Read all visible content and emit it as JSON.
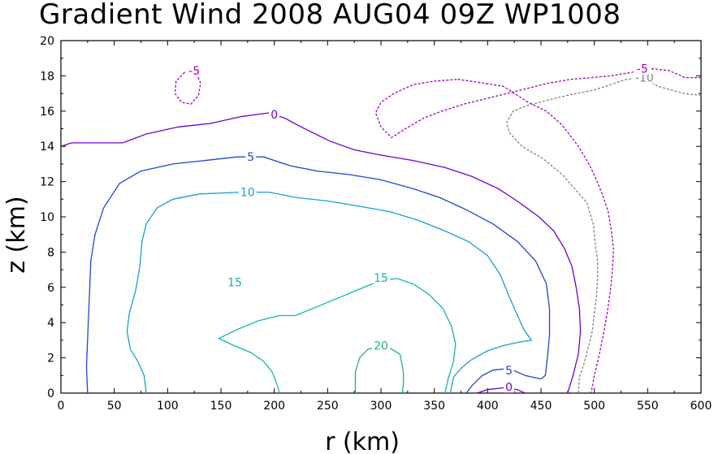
{
  "chart_data": {
    "type": "line",
    "title": "Gradient Wind 2008 AUG04 09Z   WP1008",
    "xlabel": "r (km)",
    "ylabel": "z (km)",
    "xlim": [
      0,
      600
    ],
    "ylim": [
      0,
      20
    ],
    "x_ticks": [
      0,
      50,
      100,
      150,
      200,
      250,
      300,
      350,
      400,
      450,
      500,
      550,
      600
    ],
    "y_ticks": [
      0,
      2,
      4,
      6,
      8,
      10,
      12,
      14,
      16,
      18,
      20
    ],
    "grid": false,
    "series": [
      {
        "name": "-10",
        "label": "-10",
        "color": "#808080",
        "dashed": true,
        "segments": [
          [
            [
              600,
              16.9
            ],
            [
              584,
              17.0
            ],
            [
              560,
              17.4
            ],
            [
              545,
              17.9
            ],
            [
              530,
              17.8
            ],
            [
              515,
              17.5
            ],
            [
              500,
              17.2
            ],
            [
              475,
              16.9
            ],
            [
              455,
              16.6
            ],
            [
              436,
              16.3
            ],
            [
              424,
              16.0
            ],
            [
              418,
              15.4
            ],
            [
              420,
              14.8
            ],
            [
              432,
              14.0
            ],
            [
              452,
              13.3
            ],
            [
              470,
              12.4
            ],
            [
              483,
              11.5
            ],
            [
              493,
              10.8
            ],
            [
              499,
              9.6
            ],
            [
              501,
              8.4
            ],
            [
              503,
              7.5
            ],
            [
              503,
              6.5
            ],
            [
              502,
              5.5
            ],
            [
              500,
              4.5
            ],
            [
              498,
              3.5
            ],
            [
              494,
              2.5
            ],
            [
              490,
              1.6
            ],
            [
              486,
              0.9
            ],
            [
              485,
              0
            ]
          ]
        ],
        "labels": [
          {
            "text": "-10",
            "x": 547,
            "y": 17.9
          }
        ]
      },
      {
        "name": "-5",
        "label": "-5",
        "color": "#a000c8",
        "dashed": true,
        "segments": [
          [
            [
              600,
              17.9
            ],
            [
              585,
              17.9
            ],
            [
              570,
              18.3
            ],
            [
              555,
              18.4
            ],
            [
              535,
              18.2
            ],
            [
              515,
              18.0
            ],
            [
              497,
              17.9
            ],
            [
              478,
              17.8
            ],
            [
              458,
              17.6
            ],
            [
              438,
              17.3
            ],
            [
              418,
              17.0
            ],
            [
              398,
              16.7
            ],
            [
              378,
              16.4
            ],
            [
              357,
              16.0
            ],
            [
              340,
              15.6
            ],
            [
              323,
              15.0
            ],
            [
              310,
              14.5
            ],
            [
              300,
              15.1
            ],
            [
              295,
              15.9
            ],
            [
              300,
              16.5
            ],
            [
              312,
              17.0
            ],
            [
              330,
              17.5
            ],
            [
              350,
              17.7
            ],
            [
              372,
              17.8
            ]
          ],
          [
            [
              372,
              17.8
            ],
            [
              395,
              17.6
            ],
            [
              415,
              17.4
            ],
            [
              438,
              16.5
            ],
            [
              455,
              16.0
            ],
            [
              470,
              15.2
            ],
            [
              485,
              14.0
            ],
            [
              495,
              13.0
            ],
            [
              502,
              12.1
            ],
            [
              508,
              11.2
            ],
            [
              513,
              10.3
            ],
            [
              516,
              9.2
            ],
            [
              518,
              8.2
            ],
            [
              517,
              7.0
            ],
            [
              515,
              5.8
            ],
            [
              512,
              4.5
            ],
            [
              508,
              3.2
            ],
            [
              504,
              2.0
            ],
            [
              500,
              1.0
            ],
            [
              497,
              0
            ]
          ]
        ],
        "labels": [
          {
            "text": "-5",
            "x": 545,
            "y": 18.4
          }
        ]
      },
      {
        "name": "-5 (cell)",
        "label": "-5",
        "color": "#a000c8",
        "dashed": true,
        "segments": [
          [
            [
              116,
              18.2
            ],
            [
              108,
              17.7
            ],
            [
              107,
              17.0
            ],
            [
              113,
              16.5
            ],
            [
              122,
              16.4
            ],
            [
              129,
              16.9
            ],
            [
              131,
              17.6
            ],
            [
              127,
              18.1
            ],
            [
              121,
              18.3
            ],
            [
              116,
              18.2
            ]
          ]
        ],
        "labels": [
          {
            "text": "-5",
            "x": 125,
            "y": 18.3
          }
        ]
      },
      {
        "name": "0",
        "label": "0",
        "color": "#6e00d2",
        "dashed": false,
        "segments": [
          [
            [
              0,
              14.0
            ],
            [
              10,
              14.2
            ],
            [
              30,
              14.2
            ],
            [
              58,
              14.2
            ],
            [
              80,
              14.7
            ],
            [
              110,
              15.1
            ],
            [
              140,
              15.3
            ],
            [
              170,
              15.7
            ],
            [
              195,
              15.9
            ],
            [
              210,
              15.6
            ],
            [
              222,
              15.2
            ],
            [
              232,
              14.9
            ],
            [
              252,
              14.3
            ],
            [
              275,
              13.8
            ],
            [
              300,
              13.5
            ],
            [
              330,
              13.2
            ],
            [
              360,
              12.8
            ],
            [
              385,
              12.3
            ],
            [
              410,
              11.6
            ],
            [
              430,
              10.8
            ],
            [
              448,
              10.0
            ],
            [
              462,
              9.2
            ],
            [
              472,
              8.2
            ],
            [
              479,
              7.2
            ],
            [
              483,
              6.0
            ],
            [
              486,
              4.8
            ],
            [
              487,
              3.5
            ],
            [
              485,
              2.2
            ],
            [
              480,
              1.0
            ],
            [
              475,
              0
            ]
          ],
          [
            [
              390,
              0
            ],
            [
              400,
              0.2
            ],
            [
              415,
              0.3
            ],
            [
              428,
              0.2
            ],
            [
              435,
              0
            ]
          ]
        ],
        "labels": [
          {
            "text": "0",
            "x": 200,
            "y": 15.8
          },
          {
            "text": "0",
            "x": 420,
            "y": 0.35
          }
        ]
      },
      {
        "name": "5",
        "label": "5",
        "color": "#1e46d2",
        "dashed": false,
        "segments": [
          [
            [
              25,
              0
            ],
            [
              24,
              1.5
            ],
            [
              25,
              3.0
            ],
            [
              26,
              4.5
            ],
            [
              27,
              6.0
            ],
            [
              28,
              7.5
            ],
            [
              32,
              9.0
            ],
            [
              40,
              10.5
            ],
            [
              55,
              11.9
            ],
            [
              75,
              12.6
            ],
            [
              105,
              13.0
            ],
            [
              135,
              13.2
            ],
            [
              165,
              13.4
            ],
            [
              190,
              13.4
            ],
            [
              215,
              12.9
            ],
            [
              240,
              12.6
            ],
            [
              270,
              12.4
            ],
            [
              300,
              12.1
            ],
            [
              330,
              11.6
            ],
            [
              355,
              11.1
            ],
            [
              380,
              10.4
            ],
            [
              405,
              9.6
            ],
            [
              428,
              8.6
            ],
            [
              445,
              7.5
            ],
            [
              455,
              6.2
            ],
            [
              458,
              4.8
            ],
            [
              458,
              3.3
            ],
            [
              456,
              2.0
            ],
            [
              454,
              1.0
            ],
            [
              450,
              0.8
            ]
          ],
          [
            [
              450,
              0.8
            ],
            [
              435,
              1.0
            ],
            [
              420,
              1.4
            ],
            [
              405,
              1.3
            ],
            [
              395,
              1.0
            ],
            [
              385,
              0.4
            ],
            [
              380,
              0
            ]
          ]
        ],
        "labels": [
          {
            "text": "5",
            "x": 178,
            "y": 13.4
          },
          {
            "text": "5",
            "x": 420,
            "y": 1.3
          }
        ]
      },
      {
        "name": "10",
        "label": "10",
        "color": "#14a0d2",
        "dashed": false,
        "segments": [
          [
            [
              80,
              0
            ],
            [
              78,
              1.0
            ],
            [
              72,
              1.8
            ],
            [
              65,
              2.5
            ],
            [
              62,
              3.5
            ],
            [
              64,
              4.5
            ],
            [
              70,
              5.8
            ],
            [
              74,
              7.2
            ],
            [
              76,
              8.6
            ],
            [
              80,
              9.6
            ],
            [
              90,
              10.5
            ],
            [
              105,
              11.0
            ],
            [
              130,
              11.3
            ],
            [
              170,
              11.4
            ],
            [
              195,
              11.4
            ],
            [
              220,
              11.1
            ],
            [
              250,
              10.9
            ],
            [
              280,
              10.6
            ],
            [
              308,
              10.3
            ],
            [
              335,
              9.8
            ],
            [
              360,
              9.2
            ],
            [
              382,
              8.6
            ],
            [
              400,
              7.8
            ],
            [
              412,
              6.7
            ],
            [
              420,
              5.5
            ],
            [
              428,
              4.4
            ],
            [
              434,
              3.6
            ],
            [
              441,
              3.0
            ],
            [
              430,
              2.9
            ],
            [
              415,
              2.7
            ],
            [
              400,
              2.4
            ],
            [
              385,
              1.9
            ],
            [
              375,
              1.4
            ],
            [
              368,
              0.9
            ],
            [
              365,
              0
            ]
          ]
        ],
        "labels": [
          {
            "text": "10",
            "x": 175,
            "y": 11.4
          }
        ]
      },
      {
        "name": "15",
        "label": "15",
        "color": "#14b4b4",
        "dashed": false,
        "segments": [
          [
            [
              205,
              0
            ],
            [
              202,
              0.6
            ],
            [
              198,
              1.2
            ],
            [
              190,
              1.8
            ],
            [
              178,
              2.3
            ],
            [
              162,
              2.7
            ],
            [
              148,
              3.1
            ],
            [
              165,
              3.6
            ],
            [
              185,
              4.1
            ],
            [
              205,
              4.4
            ],
            [
              220,
              4.4
            ],
            [
              240,
              4.9
            ],
            [
              260,
              5.4
            ],
            [
              280,
              5.9
            ],
            [
              300,
              6.4
            ],
            [
              315,
              6.5
            ],
            [
              330,
              6.2
            ],
            [
              345,
              5.6
            ],
            [
              358,
              4.8
            ],
            [
              366,
              3.8
            ],
            [
              370,
              2.8
            ],
            [
              368,
              1.8
            ],
            [
              363,
              0.8
            ],
            [
              360,
              0
            ]
          ]
        ],
        "labels": [
          {
            "text": "15",
            "x": 300,
            "y": 6.55
          },
          {
            "text": "15",
            "x": 163,
            "y": 6.3
          }
        ]
      },
      {
        "name": "20",
        "label": "20",
        "color": "#1eb482",
        "dashed": false,
        "segments": [
          [
            [
              276,
              0
            ],
            [
              276,
              1.2
            ],
            [
              280,
              2.0
            ],
            [
              288,
              2.5
            ],
            [
              300,
              2.6
            ],
            [
              310,
              2.5
            ],
            [
              318,
              2.2
            ],
            [
              321,
              1.2
            ],
            [
              321,
              0.5
            ],
            [
              320,
              0
            ]
          ]
        ],
        "labels": [
          {
            "text": "20",
            "x": 300,
            "y": 2.7
          }
        ]
      }
    ]
  }
}
